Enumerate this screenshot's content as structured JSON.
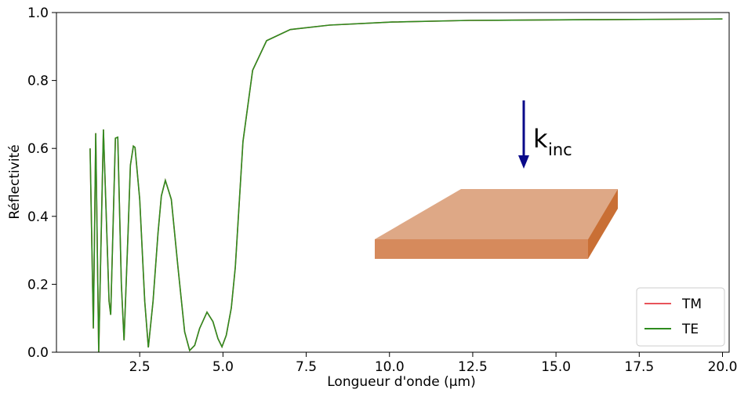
{
  "chart_data": {
    "type": "line",
    "xlabel": "Longueur d'onde (µm)",
    "ylabel": "Réflectivité",
    "x": [
      1.01,
      1.11,
      1.18,
      1.27,
      1.41,
      1.58,
      1.63,
      1.77,
      1.84,
      1.95,
      2.03,
      2.15,
      2.22,
      2.31,
      2.36,
      2.5,
      2.65,
      2.76,
      2.9,
      3.05,
      3.15,
      3.27,
      3.45,
      3.65,
      3.85,
      4.0,
      4.15,
      4.3,
      4.52,
      4.7,
      4.85,
      4.97,
      5.1,
      5.25,
      5.37,
      5.6,
      5.89,
      6.31,
      7.02,
      8.2,
      10.08,
      12.4,
      15.97,
      20.0
    ],
    "series": [
      {
        "name": "TM",
        "color": "#e8545a",
        "values": [
          0.6,
          0.07,
          0.645,
          0.0,
          0.656,
          0.15,
          0.11,
          0.63,
          0.633,
          0.2,
          0.035,
          0.35,
          0.55,
          0.607,
          0.603,
          0.45,
          0.15,
          0.014,
          0.15,
          0.35,
          0.46,
          0.506,
          0.45,
          0.25,
          0.06,
          0.005,
          0.02,
          0.07,
          0.118,
          0.09,
          0.04,
          0.016,
          0.05,
          0.13,
          0.25,
          0.62,
          0.83,
          0.917,
          0.95,
          0.963,
          0.972,
          0.977,
          0.979,
          0.981
        ]
      },
      {
        "name": "TE",
        "color": "#2e8b1e",
        "values": [
          0.6,
          0.07,
          0.645,
          0.0,
          0.656,
          0.15,
          0.11,
          0.63,
          0.633,
          0.2,
          0.035,
          0.35,
          0.55,
          0.607,
          0.603,
          0.45,
          0.15,
          0.014,
          0.15,
          0.35,
          0.46,
          0.506,
          0.45,
          0.25,
          0.06,
          0.005,
          0.02,
          0.07,
          0.118,
          0.09,
          0.04,
          0.016,
          0.05,
          0.13,
          0.25,
          0.62,
          0.83,
          0.917,
          0.95,
          0.963,
          0.972,
          0.977,
          0.979,
          0.981
        ]
      }
    ],
    "xlim": [
      0,
      20.2
    ],
    "ylim": [
      0,
      1
    ],
    "xticks": [
      2.5,
      {
        "value": 5,
        "label": "5.0"
      },
      7.5,
      {
        "value": 10,
        "label": "10.0"
      },
      12.5,
      {
        "value": 15,
        "label": "15.0"
      },
      17.5,
      {
        "value": 20,
        "label": "20.0"
      }
    ],
    "yticks": [
      {
        "value": 0,
        "label": "0.0"
      },
      0.2,
      0.4,
      0.6,
      0.8,
      {
        "value": 1,
        "label": "1.0"
      }
    ],
    "legend": "lower right",
    "annotation": {
      "symbol": "k",
      "subscript": "inc",
      "color": "#0a0a8a"
    }
  }
}
